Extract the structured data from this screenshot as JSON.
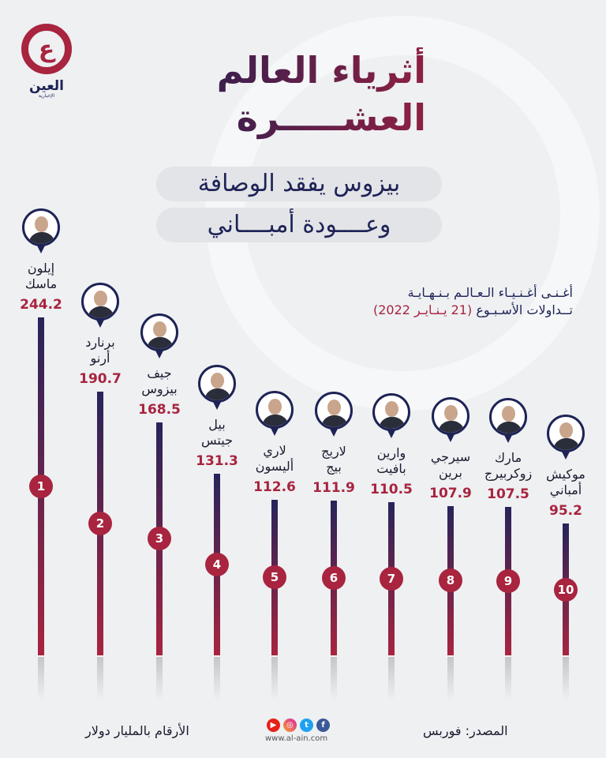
{
  "logo": {
    "letter": "ع",
    "name": "العين",
    "sub": "الإخبارية"
  },
  "title": {
    "line1": "أثرياء العالم",
    "line2": "العشـــــرة"
  },
  "subtitle": {
    "line1": "بيزوس يفقد الوصافة",
    "line2": "وعــــودة أمبــــاني"
  },
  "note": {
    "line1": "أغـنـى أغـنـيـاء الـعـالـم بـنـهـايـة",
    "line2a": "تــداولات الأسـبـوع",
    "line2b": "(21 يـنـايـر 2022)"
  },
  "colors": {
    "navy": "#1e2356",
    "crimson": "#a8243f"
  },
  "chart_data": {
    "type": "bar",
    "unit": "الأرقام بالمليار دولار",
    "categories": [
      "إيلون ماسك",
      "برنارد أرنو",
      "جيف بيزوس",
      "بيل جيتس",
      "لاري أليسون",
      "لاريج بيج",
      "وارين بافيت",
      "سيرجي برين",
      "مارك زوكربيرج",
      "موكيش أمباني"
    ],
    "name_lines": [
      [
        "إيلون",
        "ماسك"
      ],
      [
        "برنارد",
        "أرنو"
      ],
      [
        "جيف",
        "بيزوس"
      ],
      [
        "بيل",
        "جيتس"
      ],
      [
        "لاري",
        "أليسون"
      ],
      [
        "لاريج",
        "بيج"
      ],
      [
        "وارين",
        "بافيت"
      ],
      [
        "سيرجي",
        "برين"
      ],
      [
        "مارك",
        "زوكربيرج"
      ],
      [
        "موكيش",
        "أمباني"
      ]
    ],
    "values": [
      244.2,
      190.7,
      168.5,
      131.3,
      112.6,
      111.9,
      110.5,
      107.9,
      107.5,
      95.2
    ],
    "value_labels": [
      "244.2",
      "190.7",
      "168.5",
      "131.3",
      "112.6",
      "111.9",
      "110.5",
      "107.9",
      "107.5",
      "95.2"
    ],
    "ranks": [
      "1",
      "2",
      "3",
      "4",
      "5",
      "6",
      "7",
      "8",
      "9",
      "10"
    ]
  },
  "footer": {
    "source": "المصدر: فوربس",
    "units": "الأرقام بالمليار دولار",
    "url": "www.al-ain.com",
    "social": [
      "youtube-icon",
      "instagram-icon",
      "twitter-icon",
      "facebook-icon"
    ]
  }
}
